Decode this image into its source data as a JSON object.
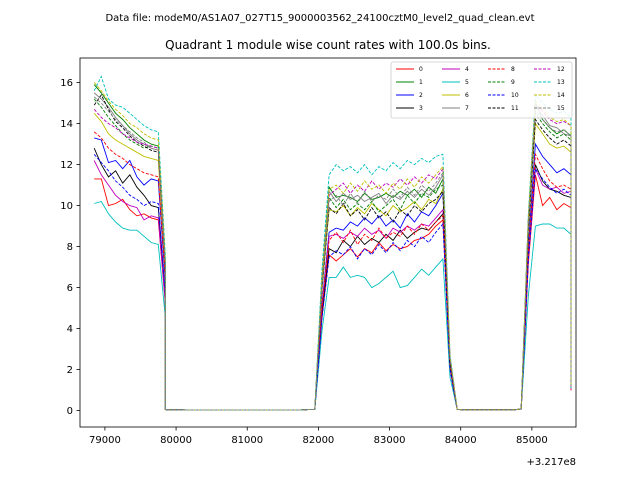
{
  "chart_data": {
    "type": "line",
    "suptitle": "Data file: modeM0/AS1A07_027T15_9000003562_24100cztM0_level2_quad_clean.evt",
    "title": "Quadrant 1 module wise count rates with 100.0s bins.",
    "xlabel": "",
    "ylabel": "",
    "x_offset_label": "+3.217e8",
    "x_offset": 321700000,
    "xlim": [
      78650,
      85620
    ],
    "ylim": [
      -0.8,
      17.2
    ],
    "x_ticks": [
      79000,
      80000,
      81000,
      82000,
      83000,
      84000,
      85000
    ],
    "x_tick_labels": [
      "79000",
      "80000",
      "81000",
      "82000",
      "83000",
      "84000",
      "85000"
    ],
    "y_ticks": [
      0,
      2,
      4,
      6,
      8,
      10,
      12,
      14,
      16
    ],
    "y_tick_labels": [
      "0",
      "2",
      "4",
      "6",
      "8",
      "10",
      "12",
      "14",
      "16"
    ],
    "legend_position": "top-right",
    "segments": [
      {
        "x_start": 78850,
        "step": 100,
        "n": 9
      },
      {
        "x_start": 79750,
        "step": 100,
        "n": 2
      },
      {
        "x_start": 79850,
        "step": 100,
        "n": 3
      },
      {
        "x_start": 80150,
        "step": 100,
        "n": 17
      },
      {
        "x_start": 81850,
        "step": 100,
        "n": 3
      },
      {
        "x_start": 82150,
        "step": 100,
        "n": 13
      },
      {
        "x_start": 83450,
        "step": 100,
        "n": 4
      },
      {
        "x_start": 83850,
        "step": 100,
        "n": 11
      },
      {
        "x_start": 84950,
        "step": 100,
        "n": 7
      }
    ],
    "series": [
      {
        "name": "0",
        "color": "#ff0000",
        "dash": "solid",
        "block1": [
          11.3,
          11.3,
          10.0,
          10.1,
          10.3,
          9.8,
          9.5,
          9.6,
          9.4
        ],
        "plateau": [
          7.6,
          7.3,
          7.6,
          7.9,
          7.5,
          7.9,
          7.7,
          8.2,
          7.8,
          8.1,
          7.9,
          8.0,
          8.3,
          8.4,
          8.6,
          9.0,
          9.3
        ],
        "block3": [
          11.5,
          10.0,
          10.4,
          9.8,
          10.1,
          9.9,
          9.7
        ]
      },
      {
        "name": "1",
        "color": "#008000",
        "dash": "solid",
        "block1": [
          15.9,
          15.5,
          15.0,
          14.5,
          14.2,
          13.8,
          13.5,
          13.2,
          13.0
        ],
        "plateau": [
          10.9,
          10.4,
          10.5,
          10.4,
          10.2,
          10.6,
          10.3,
          10.4,
          10.6,
          10.4,
          10.7,
          10.5,
          10.8,
          10.4,
          10.9,
          10.6,
          11.3
        ],
        "block3": [
          15.0,
          14.2,
          13.8,
          13.5,
          13.7,
          13.4,
          13.8
        ]
      },
      {
        "name": "2",
        "color": "#0000ff",
        "dash": "solid",
        "block1": [
          13.3,
          13.2,
          12.1,
          12.2,
          11.8,
          12.2,
          11.4,
          11.0,
          11.3
        ],
        "plateau": [
          8.7,
          8.9,
          8.8,
          9.2,
          9.0,
          9.4,
          9.1,
          9.5,
          9.0,
          9.3,
          8.9,
          9.6,
          9.2,
          9.7,
          9.5,
          10.0,
          10.6
        ],
        "block3": [
          13.0,
          12.4,
          12.0,
          11.6,
          11.8,
          11.5,
          11.9
        ]
      },
      {
        "name": "3",
        "color": "#000000",
        "dash": "solid",
        "block1": [
          12.8,
          12.0,
          11.4,
          11.7,
          11.1,
          11.5,
          10.9,
          10.5,
          10.0
        ],
        "plateau": [
          7.9,
          7.7,
          8.3,
          8.0,
          8.5,
          8.1,
          8.4,
          8.2,
          8.6,
          8.3,
          8.8,
          8.4,
          8.7,
          8.9,
          8.8,
          9.2,
          9.6
        ],
        "block3": [
          12.0,
          11.2,
          10.8,
          10.7,
          10.5,
          10.4,
          10.6
        ]
      },
      {
        "name": "4",
        "color": "#bf00bf",
        "dash": "solid",
        "block1": [
          12.2,
          11.5,
          11.0,
          10.5,
          10.2,
          10.0,
          9.9,
          9.3,
          9.5
        ],
        "plateau": [
          8.5,
          8.6,
          8.4,
          8.7,
          8.5,
          8.9,
          8.6,
          8.8,
          8.4,
          8.9,
          8.7,
          9.0,
          8.8,
          9.1,
          9.0,
          9.4,
          9.8
        ],
        "block3": [
          11.8,
          11.0,
          10.8,
          10.9,
          10.6,
          10.7,
          10.5
        ]
      },
      {
        "name": "5",
        "color": "#00bfbf",
        "dash": "solid",
        "block1": [
          10.1,
          10.2,
          9.6,
          9.2,
          8.9,
          8.8,
          8.8,
          8.5,
          8.2
        ],
        "plateau": [
          6.5,
          6.5,
          7.0,
          6.5,
          6.6,
          6.5,
          6.0,
          6.2,
          6.5,
          6.8,
          6.0,
          6.1,
          6.5,
          6.9,
          6.6,
          7.0,
          7.4
        ],
        "block3": [
          9.0,
          9.1,
          9.1,
          8.9,
          8.9,
          8.6,
          8.4
        ]
      },
      {
        "name": "6",
        "color": "#bfbf00",
        "dash": "solid",
        "block1": [
          14.5,
          14.1,
          13.5,
          13.2,
          13.0,
          12.8,
          12.6,
          12.4,
          12.3
        ],
        "plateau": [
          9.8,
          9.7,
          10.0,
          9.5,
          9.9,
          9.6,
          10.1,
          9.8,
          9.5,
          10.0,
          9.7,
          9.9,
          10.2,
          9.8,
          10.3,
          10.1,
          10.8
        ],
        "block3": [
          14.0,
          13.5,
          13.0,
          12.8,
          12.9,
          12.6,
          12.8
        ]
      },
      {
        "name": "7",
        "color": "#808080",
        "dash": "solid",
        "block1": [
          15.5,
          15.2,
          14.8,
          14.3,
          13.9,
          13.5,
          13.2,
          13.0,
          12.8
        ],
        "plateau": [
          10.7,
          10.2,
          10.6,
          10.3,
          10.5,
          10.2,
          10.4,
          10.6,
          10.1,
          10.5,
          10.3,
          10.7,
          10.4,
          10.8,
          10.5,
          10.9,
          11.5
        ],
        "block3": [
          14.8,
          14.4,
          13.9,
          13.8,
          13.5,
          13.4,
          13.6
        ]
      },
      {
        "name": "8",
        "color": "#ff0000",
        "dash": "dashed",
        "block1": [
          13.6,
          13.3,
          12.8,
          12.5,
          12.3,
          12.0,
          11.8,
          11.6,
          11.5
        ],
        "plateau": [
          8.3,
          8.7,
          8.2,
          8.8,
          8.1,
          8.6,
          8.3,
          8.9,
          8.4,
          8.7,
          8.5,
          9.0,
          8.6,
          9.1,
          8.8,
          9.2,
          9.5
        ],
        "block3": [
          12.5,
          11.8,
          11.2,
          10.9,
          11.0,
          10.8,
          10.9
        ]
      },
      {
        "name": "9",
        "color": "#008000",
        "dash": "dashed",
        "block1": [
          15.2,
          14.8,
          14.3,
          13.9,
          13.5,
          13.2,
          13.0,
          12.8,
          12.9
        ],
        "plateau": [
          10.4,
          9.9,
          10.3,
          9.8,
          10.1,
          9.8,
          10.2,
          9.7,
          10.0,
          10.3,
          9.8,
          10.5,
          10.1,
          10.6,
          10.4,
          10.8,
          11.0
        ],
        "block3": [
          14.5,
          14.0,
          13.6,
          13.3,
          13.5,
          13.2,
          13.4
        ]
      },
      {
        "name": "10",
        "color": "#0000ff",
        "dash": "dashed",
        "block1": [
          12.5,
          12.1,
          11.7,
          11.2,
          10.9,
          10.5,
          10.3,
          10.0,
          10.2
        ],
        "plateau": [
          7.5,
          7.8,
          7.6,
          8.0,
          7.4,
          7.9,
          7.6,
          8.1,
          7.7,
          8.2,
          7.8,
          8.3,
          8.0,
          8.5,
          8.2,
          8.7,
          9.1
        ],
        "block3": [
          11.8,
          11.3,
          10.9,
          10.6,
          10.8,
          10.5,
          10.7
        ]
      },
      {
        "name": "11",
        "color": "#000000",
        "dash": "dashed",
        "block1": [
          14.9,
          15.4,
          14.7,
          14.1,
          13.8,
          13.4,
          13.1,
          12.9,
          12.7
        ],
        "plateau": [
          9.9,
          9.6,
          10.1,
          9.5,
          9.8,
          9.3,
          9.9,
          9.4,
          9.7,
          9.2,
          9.8,
          9.5,
          10.0,
          9.7,
          10.1,
          10.3,
          10.7
        ],
        "block3": [
          14.2,
          13.7,
          13.3,
          13.0,
          13.2,
          12.9,
          13.1
        ]
      },
      {
        "name": "12",
        "color": "#bf00bf",
        "dash": "dashed",
        "block1": [
          14.7,
          14.3,
          14.0,
          13.8,
          13.5,
          13.3,
          13.1,
          13.0,
          12.9
        ],
        "plateau": [
          10.5,
          10.8,
          11.1,
          10.6,
          11.0,
          10.7,
          11.2,
          10.8,
          11.1,
          10.9,
          11.3,
          11.0,
          11.4,
          11.1,
          11.5,
          11.3,
          11.8
        ],
        "block3": [
          14.9,
          14.6,
          14.2,
          14.0,
          14.1,
          13.9,
          14.0
        ]
      },
      {
        "name": "13",
        "color": "#00bfbf",
        "dash": "dashed",
        "block1": [
          15.6,
          16.3,
          15.2,
          14.9,
          14.8,
          14.5,
          14.2,
          13.9,
          13.7
        ],
        "plateau": [
          11.5,
          12.0,
          11.7,
          11.9,
          11.6,
          12.0,
          11.5,
          11.9,
          11.7,
          12.1,
          11.8,
          12.2,
          12.0,
          12.3,
          12.1,
          12.4,
          12.5
        ],
        "block3": [
          15.4,
          15.0,
          14.7,
          14.5,
          14.6,
          14.3,
          14.5
        ]
      },
      {
        "name": "14",
        "color": "#bfbf00",
        "dash": "dashed",
        "block1": [
          16.0,
          15.6,
          15.1,
          14.7,
          14.4,
          14.0,
          13.8,
          13.5,
          13.3
        ],
        "plateau": [
          10.8,
          11.0,
          10.6,
          11.1,
          10.7,
          11.2,
          10.8,
          11.0,
          10.6,
          11.1,
          10.8,
          11.3,
          10.9,
          11.4,
          11.1,
          11.5,
          11.9
        ],
        "block3": [
          15.1,
          14.7,
          14.3,
          14.1,
          14.2,
          13.9,
          14.1
        ]
      },
      {
        "name": "15",
        "color": "#808080",
        "dash": "dashed",
        "block1": [
          15.3,
          15.0,
          14.6,
          14.2,
          13.9,
          13.6,
          13.3,
          13.1,
          12.8
        ],
        "plateau": [
          10.2,
          10.5,
          10.0,
          10.6,
          10.1,
          10.7,
          10.2,
          10.5,
          10.3,
          10.8,
          10.4,
          10.9,
          10.5,
          11.0,
          10.7,
          11.1,
          11.6
        ],
        "block3": [
          14.6,
          14.2,
          13.8,
          13.6,
          13.7,
          13.4,
          13.6
        ]
      }
    ]
  }
}
